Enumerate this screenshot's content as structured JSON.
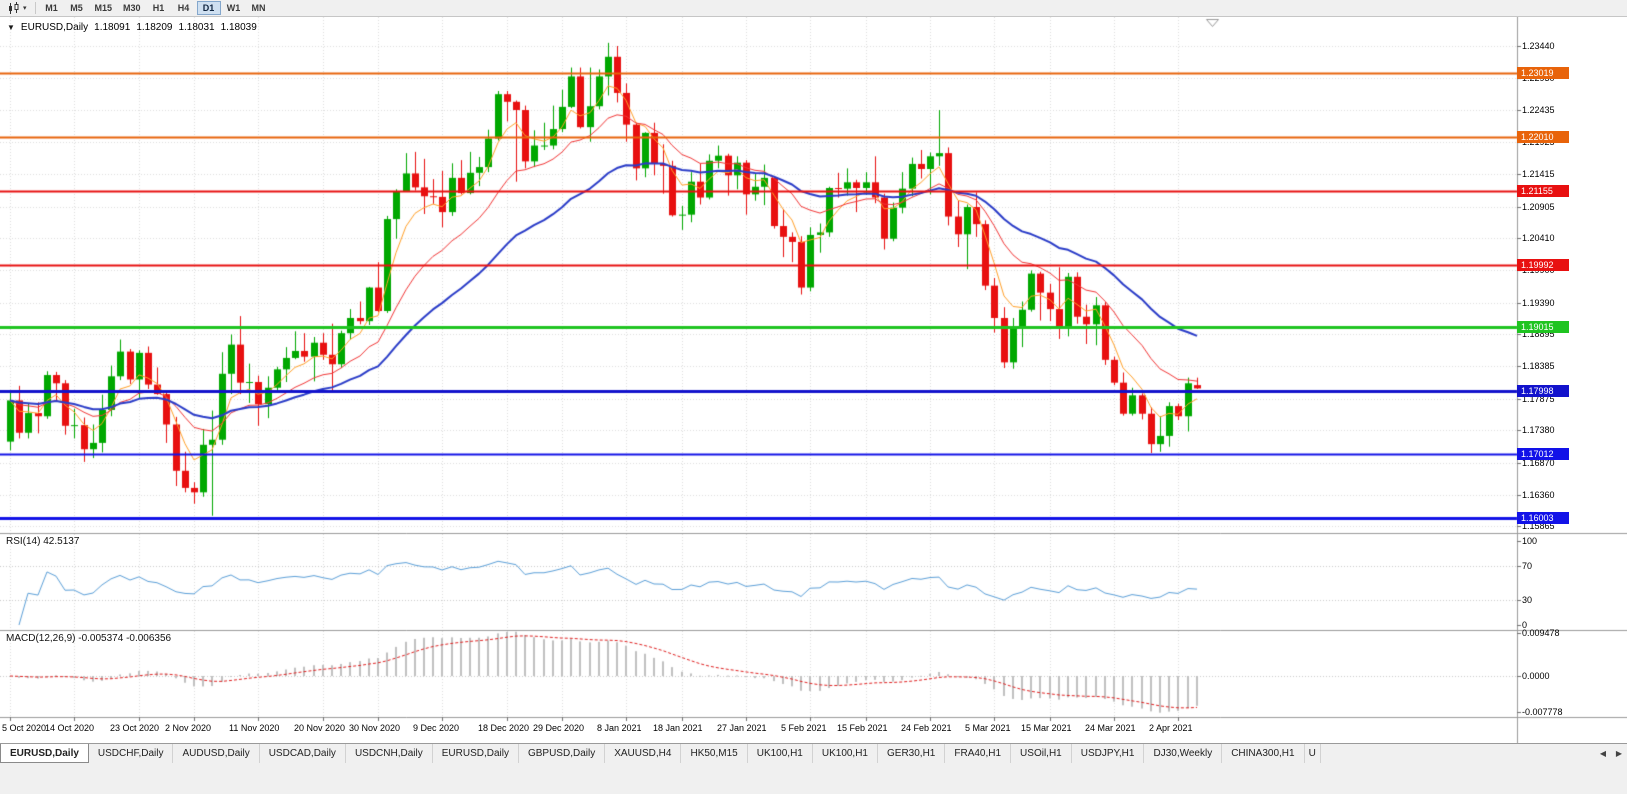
{
  "icons": {
    "chart_type_caret": "▾",
    "title_collapse": "▼",
    "tab_scroll_left": "◀",
    "tab_scroll_right": "▶"
  },
  "toolbar": {
    "timeframes": [
      "M1",
      "M5",
      "M15",
      "M30",
      "H1",
      "H4",
      "D1",
      "W1",
      "MN"
    ],
    "active_timeframe": "D1"
  },
  "title": {
    "symbol": "EURUSD,Daily",
    "open": "1.18091",
    "high": "1.18209",
    "low": "1.18031",
    "close": "1.18039"
  },
  "indicators": {
    "rsi": {
      "header": "RSI(14) 42.5137",
      "period": 14,
      "value": "42.5137",
      "scale": [
        "100",
        "70",
        "30",
        "0"
      ],
      "levels": [
        70,
        30
      ],
      "color": "#5b9fd8"
    },
    "macd": {
      "header": "MACD(12,26,9) -0.005374 -0.006356",
      "fast": 12,
      "slow": 26,
      "signal": 9,
      "macd_value": "-0.005374",
      "signal_value": "-0.006356",
      "scale": [
        "0.009478",
        "0.0000",
        "-0.007778"
      ],
      "histogram_color": "#c0c0c0",
      "signal_color": "#e02020"
    }
  },
  "chart_data": {
    "type": "candlestick",
    "title": "EURUSD,Daily",
    "symbol": "EURUSD",
    "timeframe": "D1",
    "up_color": "#00a800",
    "down_color": "#e81010",
    "y_axis_labels": [
      "1.23440",
      "1.22930",
      "1.22435",
      "1.21925",
      "1.21415",
      "1.20905",
      "1.20410",
      "1.19900",
      "1.19390",
      "1.18895",
      "1.18385",
      "1.17875",
      "1.17380",
      "1.16870",
      "1.16360",
      "1.15865"
    ],
    "x_labels": [
      {
        "text": "5 Oct 2020",
        "index": 0
      },
      {
        "text": "14 Oct 2020",
        "index": 7
      },
      {
        "text": "23 Oct 2020",
        "index": 14
      },
      {
        "text": "2 Nov 2020",
        "index": 20
      },
      {
        "text": "11 Nov 2020",
        "index": 27
      },
      {
        "text": "20 Nov 2020",
        "index": 34
      },
      {
        "text": "30 Nov 2020",
        "index": 40
      },
      {
        "text": "9 Dec 2020",
        "index": 47
      },
      {
        "text": "18 Dec 2020",
        "index": 54
      },
      {
        "text": "29 Dec 2020",
        "index": 60
      },
      {
        "text": "8 Jan 2021",
        "index": 67
      },
      {
        "text": "18 Jan 2021",
        "index": 73
      },
      {
        "text": "27 Jan 2021",
        "index": 80
      },
      {
        "text": "5 Feb 2021",
        "index": 87
      },
      {
        "text": "15 Feb 2021",
        "index": 93
      },
      {
        "text": "24 Feb 2021",
        "index": 100
      },
      {
        "text": "5 Mar 2021",
        "index": 107
      },
      {
        "text": "15 Mar 2021",
        "index": 113
      },
      {
        "text": "24 Mar 2021",
        "index": 120
      },
      {
        "text": "2 Apr 2021",
        "index": 127
      }
    ],
    "levels": [
      {
        "price": 1.23019,
        "label": "1.23019",
        "color": "#e8630a",
        "thickness": 2
      },
      {
        "price": 1.2201,
        "label": "1.22010",
        "color": "#e8630a",
        "thickness": 2
      },
      {
        "price": 1.21155,
        "label": "1.21155",
        "color": "#e81010",
        "thickness": 2
      },
      {
        "price": 1.19992,
        "label": "1.19992",
        "color": "#e81010",
        "thickness": 2
      },
      {
        "price": 1.19015,
        "label": "1.19015",
        "color": "#1fc421",
        "thickness": 3
      },
      {
        "price": 1.17998,
        "label": "1.17998",
        "color": "#1212cc",
        "thickness": 3
      },
      {
        "price": 1.17012,
        "label": "1.17012",
        "color": "#1212e8",
        "thickness": 2
      },
      {
        "price": 1.16003,
        "label": "1.16003",
        "color": "#1212e8",
        "thickness": 3
      }
    ],
    "moving_averages": [
      {
        "period": 5,
        "method": "ema",
        "color": "#ffa028",
        "width": 1
      },
      {
        "period": 14,
        "method": "ema",
        "color": "#f23535",
        "width": 1
      },
      {
        "period": 30,
        "method": "ema",
        "color": "#2a3cc8",
        "width": 2
      }
    ],
    "candles": [
      [
        1.172,
        1.1798,
        1.1706,
        1.1785
      ],
      [
        1.1785,
        1.1808,
        1.1725,
        1.1734
      ],
      [
        1.1734,
        1.1781,
        1.1725,
        1.1765
      ],
      [
        1.1765,
        1.1782,
        1.1733,
        1.176
      ],
      [
        1.176,
        1.1831,
        1.1756,
        1.1825
      ],
      [
        1.1825,
        1.183,
        1.1785,
        1.1812
      ],
      [
        1.1812,
        1.1817,
        1.1731,
        1.1745
      ],
      [
        1.1745,
        1.1772,
        1.1725,
        1.1746
      ],
      [
        1.1746,
        1.1758,
        1.1688,
        1.1708
      ],
      [
        1.1708,
        1.1747,
        1.1694,
        1.1718
      ],
      [
        1.1718,
        1.1794,
        1.1703,
        1.177
      ],
      [
        1.177,
        1.184,
        1.176,
        1.1823
      ],
      [
        1.1823,
        1.1881,
        1.1817,
        1.1862
      ],
      [
        1.1862,
        1.1866,
        1.1811,
        1.1818
      ],
      [
        1.1818,
        1.1864,
        1.1787,
        1.186
      ],
      [
        1.186,
        1.187,
        1.1803,
        1.181
      ],
      [
        1.181,
        1.1837,
        1.1794,
        1.1795
      ],
      [
        1.1795,
        1.18,
        1.1718,
        1.1747
      ],
      [
        1.1747,
        1.1759,
        1.165,
        1.1674
      ],
      [
        1.1674,
        1.1704,
        1.164,
        1.1647
      ],
      [
        1.1647,
        1.1656,
        1.1622,
        1.164
      ],
      [
        1.164,
        1.174,
        1.1633,
        1.1715
      ],
      [
        1.1715,
        1.1769,
        1.1603,
        1.1723
      ],
      [
        1.1723,
        1.1861,
        1.1715,
        1.1827
      ],
      [
        1.1827,
        1.1889,
        1.1795,
        1.1873
      ],
      [
        1.1873,
        1.1918,
        1.1795,
        1.1813
      ],
      [
        1.1813,
        1.1843,
        1.1781,
        1.1814
      ],
      [
        1.1814,
        1.1824,
        1.1745,
        1.1779
      ],
      [
        1.1779,
        1.1823,
        1.1757,
        1.1805
      ],
      [
        1.1805,
        1.1838,
        1.1799,
        1.1834
      ],
      [
        1.1834,
        1.1869,
        1.1814,
        1.1852
      ],
      [
        1.1852,
        1.1894,
        1.185,
        1.1863
      ],
      [
        1.1863,
        1.1891,
        1.1846,
        1.1854
      ],
      [
        1.1854,
        1.1885,
        1.1815,
        1.1876
      ],
      [
        1.1876,
        1.1891,
        1.1849,
        1.1857
      ],
      [
        1.1857,
        1.1906,
        1.18,
        1.1842
      ],
      [
        1.1842,
        1.1895,
        1.1836,
        1.1891
      ],
      [
        1.1891,
        1.1929,
        1.1881,
        1.1915
      ],
      [
        1.1915,
        1.1941,
        1.1905,
        1.191
      ],
      [
        1.191,
        1.1964,
        1.1904,
        1.1963
      ],
      [
        1.1963,
        1.2003,
        1.1924,
        1.1926
      ],
      [
        1.1926,
        1.2076,
        1.1923,
        1.2071
      ],
      [
        1.2071,
        1.2118,
        1.204,
        1.2115
      ],
      [
        1.2115,
        1.2175,
        1.2114,
        1.2143
      ],
      [
        1.2143,
        1.2177,
        1.2116,
        1.2121
      ],
      [
        1.2121,
        1.2166,
        1.2079,
        1.2107
      ],
      [
        1.2107,
        1.2134,
        1.2095,
        1.2106
      ],
      [
        1.2106,
        1.2147,
        1.2058,
        1.2082
      ],
      [
        1.2082,
        1.2159,
        1.2076,
        1.2136
      ],
      [
        1.2136,
        1.2164,
        1.211,
        1.2112
      ],
      [
        1.2112,
        1.2177,
        1.211,
        1.2144
      ],
      [
        1.2144,
        1.2169,
        1.2123,
        1.2153
      ],
      [
        1.2153,
        1.2212,
        1.2145,
        1.2198
      ],
      [
        1.2198,
        1.2273,
        1.2195,
        1.2268
      ],
      [
        1.2268,
        1.2273,
        1.2225,
        1.2256
      ],
      [
        1.2256,
        1.2258,
        1.213,
        1.2243
      ],
      [
        1.2243,
        1.225,
        1.2151,
        1.2162
      ],
      [
        1.2162,
        1.2211,
        1.2153,
        1.2187
      ],
      [
        1.2187,
        1.2223,
        1.218,
        1.2187
      ],
      [
        1.2187,
        1.225,
        1.2181,
        1.2213
      ],
      [
        1.2213,
        1.2275,
        1.2208,
        1.2248
      ],
      [
        1.2248,
        1.231,
        1.2246,
        1.2296
      ],
      [
        1.2296,
        1.231,
        1.2214,
        1.2216
      ],
      [
        1.2216,
        1.231,
        1.2193,
        1.2249
      ],
      [
        1.2249,
        1.2307,
        1.2244,
        1.2296
      ],
      [
        1.2296,
        1.2349,
        1.2266,
        1.2327
      ],
      [
        1.2327,
        1.2344,
        1.2255,
        1.227
      ],
      [
        1.227,
        1.2285,
        1.2193,
        1.222
      ],
      [
        1.222,
        1.2223,
        1.2132,
        1.2151
      ],
      [
        1.2151,
        1.2208,
        1.2137,
        1.2207
      ],
      [
        1.2207,
        1.2223,
        1.214,
        1.2158
      ],
      [
        1.2158,
        1.2189,
        1.2111,
        1.2155
      ],
      [
        1.2155,
        1.2163,
        1.2075,
        1.2077
      ],
      [
        1.2077,
        1.2092,
        1.2054,
        1.2078
      ],
      [
        1.2078,
        1.2145,
        1.2066,
        1.213
      ],
      [
        1.213,
        1.2158,
        1.2094,
        1.2105
      ],
      [
        1.2105,
        1.2173,
        1.2102,
        1.2163
      ],
      [
        1.2163,
        1.2187,
        1.2151,
        1.2171
      ],
      [
        1.2171,
        1.2174,
        1.2108,
        1.214
      ],
      [
        1.214,
        1.217,
        1.2118,
        1.216
      ],
      [
        1.216,
        1.2164,
        1.2078,
        1.211
      ],
      [
        1.211,
        1.2142,
        1.21,
        1.2122
      ],
      [
        1.2122,
        1.2157,
        1.2093,
        1.2136
      ],
      [
        1.2136,
        1.2137,
        1.2056,
        1.206
      ],
      [
        1.206,
        1.2087,
        1.2011,
        1.2043
      ],
      [
        1.2043,
        1.205,
        1.2003,
        1.2035
      ],
      [
        1.2035,
        1.2044,
        1.1952,
        1.1963
      ],
      [
        1.1963,
        1.2058,
        1.1957,
        1.2046
      ],
      [
        1.2046,
        1.2064,
        1.2018,
        1.205
      ],
      [
        1.205,
        1.2122,
        1.2043,
        1.212
      ],
      [
        1.212,
        1.2144,
        1.2105,
        1.2119
      ],
      [
        1.2119,
        1.2151,
        1.2108,
        1.2129
      ],
      [
        1.2129,
        1.2133,
        1.2082,
        1.212
      ],
      [
        1.212,
        1.2145,
        1.2109,
        1.2129
      ],
      [
        1.2129,
        1.217,
        1.2096,
        1.2105
      ],
      [
        1.2105,
        1.2111,
        1.2023,
        1.204
      ],
      [
        1.204,
        1.2097,
        1.2036,
        1.2089
      ],
      [
        1.2089,
        1.2145,
        1.208,
        1.2119
      ],
      [
        1.2119,
        1.2168,
        1.2107,
        1.2158
      ],
      [
        1.2158,
        1.218,
        1.2135,
        1.215
      ],
      [
        1.215,
        1.2176,
        1.211,
        1.217
      ],
      [
        1.217,
        1.2243,
        1.2155,
        1.2175
      ],
      [
        1.2175,
        1.2184,
        1.2061,
        1.2075
      ],
      [
        1.2075,
        1.2101,
        1.2027,
        1.2047
      ],
      [
        1.2047,
        1.2094,
        1.1992,
        1.209
      ],
      [
        1.209,
        1.2113,
        1.2043,
        1.2063
      ],
      [
        1.2063,
        1.2069,
        1.1959,
        1.1966
      ],
      [
        1.1966,
        1.1978,
        1.1892,
        1.1915
      ],
      [
        1.1915,
        1.1932,
        1.1836,
        1.1845
      ],
      [
        1.1845,
        1.1915,
        1.1835,
        1.19
      ],
      [
        1.19,
        1.1941,
        1.1869,
        1.1928
      ],
      [
        1.1928,
        1.199,
        1.1925,
        1.1985
      ],
      [
        1.1985,
        1.1988,
        1.1911,
        1.1955
      ],
      [
        1.1955,
        1.1969,
        1.191,
        1.1929
      ],
      [
        1.1929,
        1.1995,
        1.1882,
        1.19
      ],
      [
        1.19,
        1.1986,
        1.1886,
        1.198
      ],
      [
        1.198,
        1.1987,
        1.1906,
        1.1917
      ],
      [
        1.1917,
        1.1936,
        1.1874,
        1.1905
      ],
      [
        1.1905,
        1.1948,
        1.1872,
        1.1935
      ],
      [
        1.1935,
        1.194,
        1.1841,
        1.1849
      ],
      [
        1.1849,
        1.1854,
        1.1809,
        1.1813
      ],
      [
        1.1813,
        1.1829,
        1.1761,
        1.1764
      ],
      [
        1.1764,
        1.1805,
        1.1761,
        1.1793
      ],
      [
        1.1793,
        1.1796,
        1.1755,
        1.1764
      ],
      [
        1.1764,
        1.1774,
        1.1702,
        1.1716
      ],
      [
        1.1716,
        1.176,
        1.1704,
        1.1729
      ],
      [
        1.1729,
        1.1782,
        1.1712,
        1.1776
      ],
      [
        1.1776,
        1.178,
        1.1754,
        1.176
      ],
      [
        1.176,
        1.1821,
        1.1736,
        1.1812
      ],
      [
        1.18091,
        1.18209,
        1.18031,
        1.18039
      ]
    ]
  },
  "tabs": [
    {
      "label": "EURUSD,Daily",
      "active": true
    },
    {
      "label": "USDCHF,Daily"
    },
    {
      "label": "AUDUSD,Daily"
    },
    {
      "label": "USDCAD,Daily"
    },
    {
      "label": "USDCNH,Daily"
    },
    {
      "label": "EURUSD,Daily"
    },
    {
      "label": "GBPUSD,Daily"
    },
    {
      "label": "XAUUSD,H4"
    },
    {
      "label": "HK50,M15"
    },
    {
      "label": "UK100,H1"
    },
    {
      "label": "UK100,H1"
    },
    {
      "label": "GER30,H1"
    },
    {
      "label": "FRA40,H1"
    },
    {
      "label": "USOil,H1"
    },
    {
      "label": "USDJPY,H1"
    },
    {
      "label": "DJ30,Weekly"
    },
    {
      "label": "CHINA300,H1"
    },
    {
      "label": "U",
      "clipped": true
    }
  ]
}
